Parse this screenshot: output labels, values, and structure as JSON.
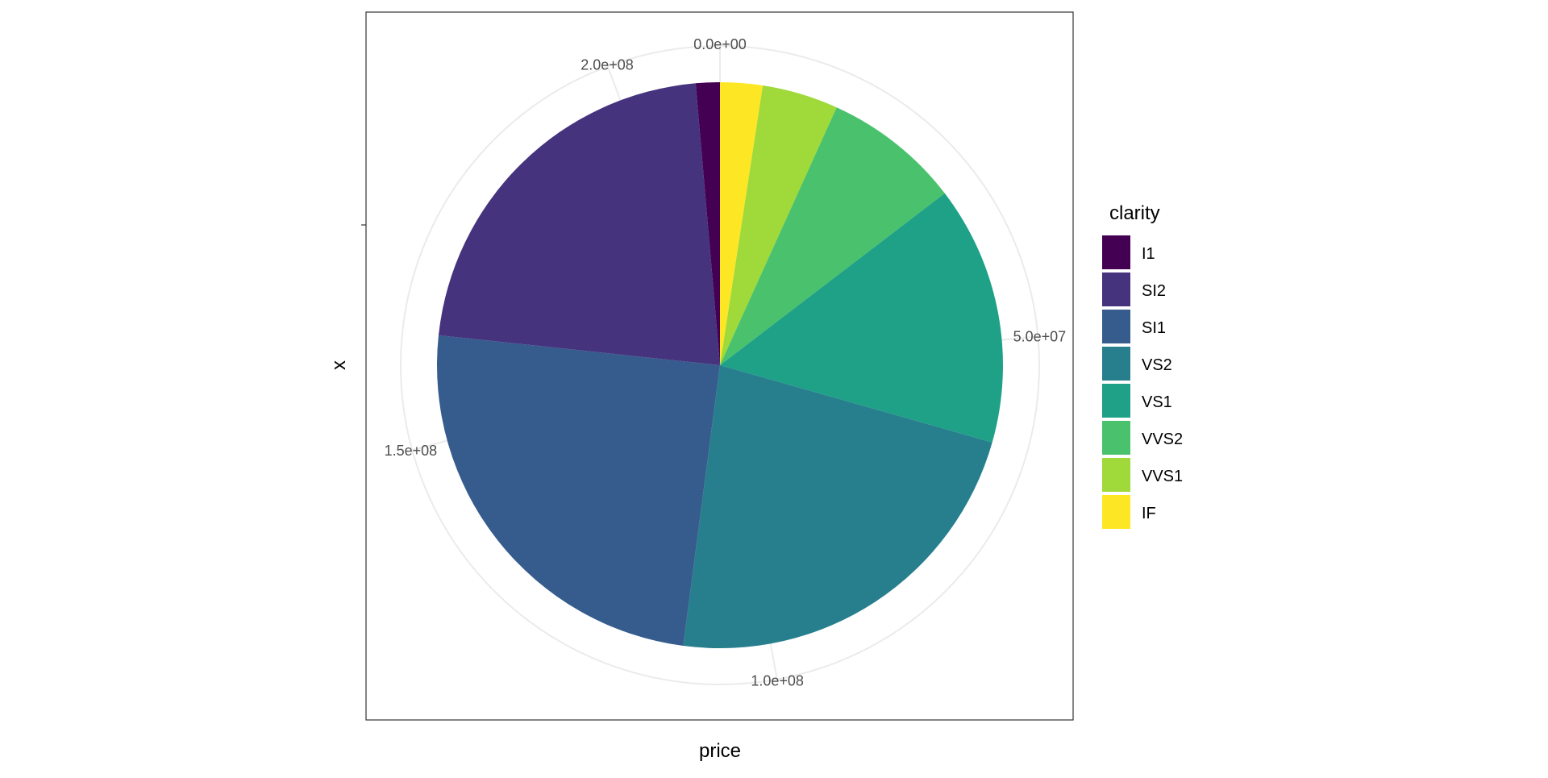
{
  "chart_data": {
    "type": "pie",
    "xlabel": "price",
    "ylabel": "x",
    "theta_ticks": [
      0,
      50000000,
      100000000,
      150000000,
      200000000
    ],
    "theta_tick_labels": [
      "0.0e+00",
      "5.0e+07",
      "1.0e+08",
      "1.5e+08",
      "2.0e+08"
    ],
    "legend": {
      "title": "clarity",
      "position": "right"
    },
    "categories": [
      "I1",
      "SI2",
      "SI1",
      "VS2",
      "VS1",
      "VVS2",
      "VVS1",
      "IF"
    ],
    "values": [
      2907000,
      46550000,
      52210000,
      48110000,
      31370000,
      16640000,
      9220000,
      5130000
    ],
    "colors": [
      "#440154",
      "#46337E",
      "#365C8D",
      "#277F8E",
      "#1FA187",
      "#4AC16D",
      "#9FDA3A",
      "#FDE725"
    ],
    "stack_order_clockwise_from_top": [
      "IF",
      "VVS1",
      "VVS2",
      "VS1",
      "VS2",
      "SI1",
      "SI2",
      "I1"
    ],
    "grid": true
  }
}
